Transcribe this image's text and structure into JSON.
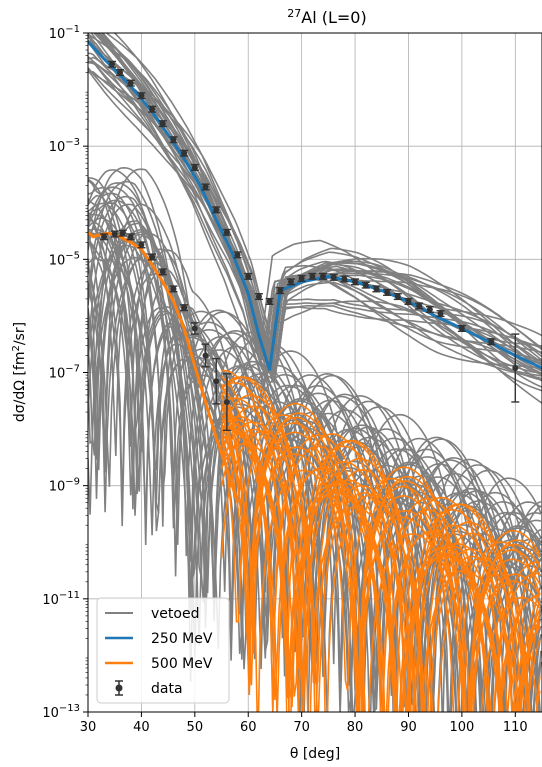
{
  "chart_data": {
    "type": "line",
    "title_sup": "27",
    "title_main": "Al (L=0)",
    "xlabel": "θ [deg]",
    "ylabel_pre": "dσ/dΩ [fm",
    "ylabel_sup": "2",
    "ylabel_post": "/sr]",
    "xlim": [
      30,
      115
    ],
    "ylim": [
      1e-13,
      0.1
    ],
    "yscale": "log",
    "grid": true,
    "legend_position": "lower-left",
    "x_ticks": [
      "30",
      "40",
      "50",
      "60",
      "70",
      "80",
      "90",
      "100",
      "110"
    ],
    "y_ticks": [
      {
        "base": "10",
        "exp": "−1"
      },
      {
        "base": "10",
        "exp": "−3"
      },
      {
        "base": "10",
        "exp": "−5"
      },
      {
        "base": "10",
        "exp": "−7"
      },
      {
        "base": "10",
        "exp": "−9"
      },
      {
        "base": "10",
        "exp": "−11"
      },
      {
        "base": "10",
        "exp": "−13"
      }
    ],
    "colors": {
      "vetoed": "#808080",
      "mev250": "#1f77b4",
      "mev500": "#ff7f0e",
      "data": "#333333"
    },
    "legend": [
      "vetoed",
      "250 MeV",
      "500 MeV",
      "data"
    ],
    "series": [
      {
        "name": "250 MeV",
        "x": [
          30,
          33,
          36,
          39,
          42,
          45,
          48,
          51,
          54,
          57,
          60,
          62,
          64,
          66,
          70,
          75,
          80,
          85,
          90,
          95,
          100,
          105,
          110,
          115
        ],
        "y": [
          0.07,
          0.035,
          0.018,
          0.009,
          0.004,
          0.0016,
          0.0006,
          0.0002,
          5e-05,
          1.3e-05,
          2.5e-06,
          4.5e-07,
          1.1e-07,
          2.8e-06,
          4e-06,
          5e-06,
          4e-06,
          2.8e-06,
          1.8e-06,
          1e-06,
          6e-07,
          3.5e-07,
          2e-07,
          1.2e-07
        ]
      },
      {
        "name": "500 MeV",
        "x": [
          30,
          31,
          32,
          34,
          36,
          38,
          40,
          42,
          44,
          46,
          48,
          50,
          52,
          54,
          56,
          58
        ],
        "y": [
          3e-05,
          2.5e-05,
          2.7e-05,
          2.9e-05,
          2.5e-05,
          2e-05,
          1.5e-05,
          8e-06,
          4e-06,
          1.8e-06,
          6e-07,
          1.3e-07,
          3e-08,
          7e-09,
          2e-09,
          5e-10
        ]
      },
      {
        "name": "data",
        "points": [
          {
            "x": 34.5,
            "y": 0.028,
            "err": 0.0
          },
          {
            "x": 36.0,
            "y": 0.02,
            "err": 0.0
          },
          {
            "x": 38.0,
            "y": 0.013,
            "err": 0.0
          },
          {
            "x": 40.0,
            "y": 0.0078,
            "err": 0.0
          },
          {
            "x": 42.0,
            "y": 0.0045,
            "err": 0.0
          },
          {
            "x": 44.0,
            "y": 0.0025,
            "err": 0.0
          },
          {
            "x": 46.0,
            "y": 0.0013,
            "err": 0.0
          },
          {
            "x": 48.0,
            "y": 0.00075,
            "err": 0.0
          },
          {
            "x": 50.0,
            "y": 0.00042,
            "err": 0.0
          },
          {
            "x": 52.0,
            "y": 0.00019,
            "err": 0.0
          },
          {
            "x": 54.0,
            "y": 7.5e-05,
            "err": 0.0
          },
          {
            "x": 56.0,
            "y": 3e-05,
            "err": 0.0
          },
          {
            "x": 58.0,
            "y": 1.2e-05,
            "err": 0.0
          },
          {
            "x": 60.0,
            "y": 5e-06,
            "err": 0.0
          },
          {
            "x": 62.0,
            "y": 2.2e-06,
            "err": 0.0
          },
          {
            "x": 64.0,
            "y": 1.8e-06,
            "err": 0.0
          },
          {
            "x": 66.0,
            "y": 2.8e-06,
            "err": 0.0
          },
          {
            "x": 68.0,
            "y": 4e-06,
            "err": 0.0
          },
          {
            "x": 70.0,
            "y": 4.6e-06,
            "err": 0.0
          },
          {
            "x": 72.0,
            "y": 5e-06,
            "err": 0.0
          },
          {
            "x": 74.0,
            "y": 5e-06,
            "err": 0.0
          },
          {
            "x": 76.0,
            "y": 4.8e-06,
            "err": 0.0
          },
          {
            "x": 78.0,
            "y": 4.5e-06,
            "err": 0.0
          },
          {
            "x": 80.0,
            "y": 4e-06,
            "err": 0.0
          },
          {
            "x": 82.0,
            "y": 3.5e-06,
            "err": 0.0
          },
          {
            "x": 84.0,
            "y": 3e-06,
            "err": 0.0
          },
          {
            "x": 86.0,
            "y": 2.6e-06,
            "err": 0.0
          },
          {
            "x": 88.0,
            "y": 2.2e-06,
            "err": 0.0
          },
          {
            "x": 90.0,
            "y": 1.8e-06,
            "err": 0.0
          },
          {
            "x": 92.0,
            "y": 1.5e-06,
            "err": 0.0
          },
          {
            "x": 94.0,
            "y": 1.3e-06,
            "err": 0.0
          },
          {
            "x": 96.0,
            "y": 1.1e-06,
            "err": 0.0
          },
          {
            "x": 100.0,
            "y": 6e-07,
            "err": 0.0
          },
          {
            "x": 105.5,
            "y": 3.5e-07,
            "err": 0.0
          },
          {
            "x": 110.0,
            "y": 1.2e-07,
            "err": 0.6
          },
          {
            "x": 33.0,
            "y": 2.5e-05,
            "err": 0.0
          },
          {
            "x": 35.0,
            "y": 2.8e-05,
            "err": 0.0
          },
          {
            "x": 36.5,
            "y": 2.9e-05,
            "err": 0.0
          },
          {
            "x": 38.0,
            "y": 2.5e-05,
            "err": 0.0
          },
          {
            "x": 40.0,
            "y": 1.8e-05,
            "err": 0.0
          },
          {
            "x": 42.0,
            "y": 1.1e-05,
            "err": 0.0
          },
          {
            "x": 44.0,
            "y": 6e-06,
            "err": 0.0
          },
          {
            "x": 46.0,
            "y": 3e-06,
            "err": 0.0
          },
          {
            "x": 48.0,
            "y": 1.4e-06,
            "err": 0.0
          },
          {
            "x": 50.0,
            "y": 6e-07,
            "err": 0.1
          },
          {
            "x": 52.0,
            "y": 2e-07,
            "err": 0.2
          },
          {
            "x": 54.0,
            "y": 7e-08,
            "err": 0.4
          },
          {
            "x": 56.0,
            "y": 3e-08,
            "err": 0.5
          }
        ]
      }
    ]
  }
}
